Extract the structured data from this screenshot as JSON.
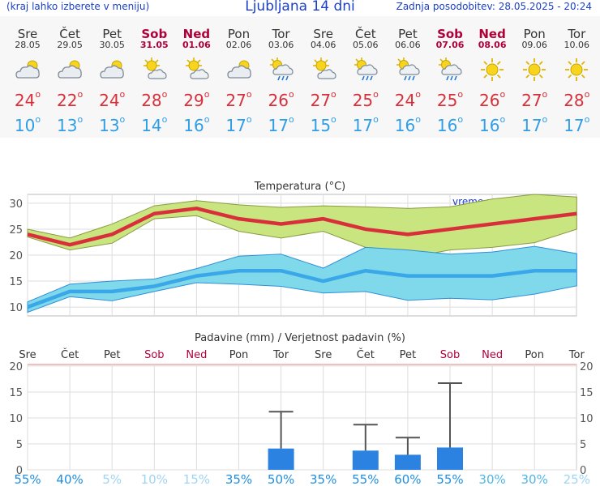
{
  "header": {
    "menu_hint": "(kraj lahko izberete v meniju)",
    "title": "Ljubljana 14 dni",
    "updated": "Zadnja posodobitev: 28.05.2025 - 20:24"
  },
  "days": [
    {
      "name": "Sre",
      "date": "28.05",
      "weekend": false,
      "icon": "partly-cloudy-icon",
      "tmax": "24",
      "tmin": "10"
    },
    {
      "name": "Čet",
      "date": "29.05",
      "weekend": false,
      "icon": "partly-cloudy-icon",
      "tmax": "22",
      "tmin": "13"
    },
    {
      "name": "Pet",
      "date": "30.05",
      "weekend": false,
      "icon": "partly-cloudy-icon",
      "tmax": "24",
      "tmin": "13"
    },
    {
      "name": "Sob",
      "date": "31.05",
      "weekend": true,
      "icon": "sun-cloud-icon",
      "tmax": "28",
      "tmin": "14"
    },
    {
      "name": "Ned",
      "date": "01.06",
      "weekend": true,
      "icon": "sun-cloud-icon",
      "tmax": "29",
      "tmin": "16"
    },
    {
      "name": "Pon",
      "date": "02.06",
      "weekend": false,
      "icon": "partly-cloudy-icon",
      "tmax": "27",
      "tmin": "17"
    },
    {
      "name": "Tor",
      "date": "03.06",
      "weekend": false,
      "icon": "sun-rain-icon",
      "tmax": "26",
      "tmin": "17"
    },
    {
      "name": "Sre",
      "date": "04.06",
      "weekend": false,
      "icon": "sun-cloud-icon",
      "tmax": "27",
      "tmin": "15"
    },
    {
      "name": "Čet",
      "date": "05.06",
      "weekend": false,
      "icon": "sun-rain-icon",
      "tmax": "25",
      "tmin": "17"
    },
    {
      "name": "Pet",
      "date": "06.06",
      "weekend": false,
      "icon": "sun-rain-icon",
      "tmax": "24",
      "tmin": "16"
    },
    {
      "name": "Sob",
      "date": "07.06",
      "weekend": true,
      "icon": "sun-rain-icon",
      "tmax": "25",
      "tmin": "16"
    },
    {
      "name": "Ned",
      "date": "08.06",
      "weekend": true,
      "icon": "sun-icon",
      "tmax": "26",
      "tmin": "16"
    },
    {
      "name": "Pon",
      "date": "09.06",
      "weekend": false,
      "icon": "sun-icon",
      "tmax": "27",
      "tmin": "17"
    },
    {
      "name": "Tor",
      "date": "10.06",
      "weekend": false,
      "icon": "sun-icon",
      "tmax": "28",
      "tmin": "17"
    }
  ],
  "degree_mark": "o",
  "chart_data": [
    {
      "type": "line",
      "title": "Temperatura (°C)",
      "watermark": "vreme.us",
      "categories": [
        "Sre",
        "Čet",
        "Pet",
        "Sob",
        "Ned",
        "Pon",
        "Tor",
        "Sre",
        "Čet",
        "Pet",
        "Sob",
        "Ned",
        "Pon",
        "Tor"
      ],
      "yticks": [
        10,
        15,
        20,
        25,
        30
      ],
      "ylim": [
        8.3,
        31.7
      ],
      "grid": true,
      "colors": {
        "max": "#d8303a",
        "min": "#3aa7e8",
        "max_band": "#c9e580",
        "min_band": "#7fd9ea"
      },
      "series": [
        {
          "values": [
            24,
            22,
            24,
            28,
            29,
            27,
            26,
            27,
            25,
            24,
            25,
            26,
            27,
            28
          ]
        },
        {
          "values": [
            10,
            13,
            13,
            14,
            16,
            17,
            17,
            15,
            17,
            16,
            16,
            16,
            17,
            17
          ]
        }
      ],
      "max_band": {
        "lower": [
          23.5,
          21,
          22.3,
          27,
          27.6,
          24.6,
          23.3,
          24.6,
          21.5,
          19.5,
          21,
          21.5,
          22.4,
          25
        ],
        "upper": [
          25,
          23.3,
          26,
          29.5,
          30.5,
          29.7,
          29.2,
          29.5,
          29.3,
          29,
          29.3,
          30.8,
          31.7,
          31.2
        ]
      },
      "min_band": {
        "lower": [
          9,
          12,
          11.2,
          13,
          14.7,
          14.4,
          14,
          12.7,
          13,
          11.3,
          11.7,
          11.4,
          12.5,
          14.1
        ],
        "upper": [
          11,
          14.4,
          15,
          15.4,
          17.4,
          19.8,
          20.2,
          17.5,
          21.5,
          21,
          20.2,
          20.6,
          21.7,
          20.3
        ]
      }
    },
    {
      "type": "bar",
      "title": "Padavine (mm) / Verjetnost padavin (%)",
      "categories": [
        "Sre",
        "Čet",
        "Pet",
        "Sob",
        "Ned",
        "Pon",
        "Tor",
        "Sre",
        "Čet",
        "Pet",
        "Sob",
        "Ned",
        "Pon",
        "Tor"
      ],
      "yticks": [
        0,
        5,
        10,
        15,
        20
      ],
      "ylim": [
        0,
        20.3
      ],
      "grid": true,
      "values": [
        0,
        0,
        0,
        0,
        0,
        0,
        4.1,
        0,
        3.7,
        2.9,
        4.3,
        0,
        0,
        0
      ],
      "error_high": [
        0,
        0,
        0,
        0,
        0,
        0,
        11.2,
        0,
        8.7,
        6.2,
        16.7,
        0,
        0,
        0
      ],
      "probability": [
        "55%",
        "40%",
        "5%",
        "10%",
        "15%",
        "35%",
        "50%",
        "35%",
        "55%",
        "60%",
        "55%",
        "30%",
        "30%",
        "25%"
      ],
      "probability_values": [
        55,
        40,
        5,
        10,
        15,
        35,
        50,
        35,
        55,
        60,
        55,
        30,
        30,
        25
      ],
      "colors": {
        "bar": "#2b82e0",
        "error": "#555555"
      }
    }
  ]
}
